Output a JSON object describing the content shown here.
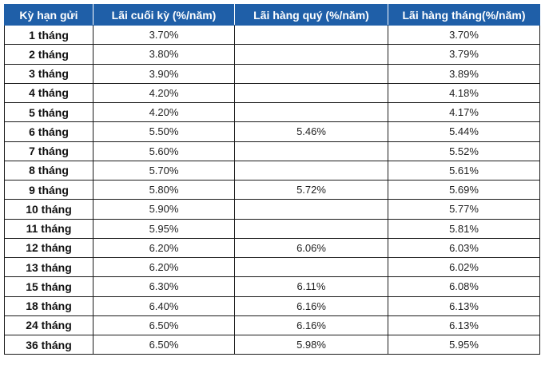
{
  "table": {
    "headers": [
      "Kỳ hạn gửi",
      "Lãi cuối kỳ (%/năm)",
      "Lãi hàng quý (%/năm)",
      "Lãi hàng tháng(%/năm)"
    ],
    "rows": [
      {
        "term": "1 tháng",
        "end": "3.70%",
        "quarterly": "",
        "monthly": "3.70%"
      },
      {
        "term": "2 tháng",
        "end": "3.80%",
        "quarterly": "",
        "monthly": "3.79%"
      },
      {
        "term": "3 tháng",
        "end": "3.90%",
        "quarterly": "",
        "monthly": "3.89%"
      },
      {
        "term": "4 tháng",
        "end": "4.20%",
        "quarterly": "",
        "monthly": "4.18%"
      },
      {
        "term": "5 tháng",
        "end": "4.20%",
        "quarterly": "",
        "monthly": "4.17%"
      },
      {
        "term": "6 tháng",
        "end": "5.50%",
        "quarterly": "5.46%",
        "monthly": "5.44%"
      },
      {
        "term": "7 tháng",
        "end": "5.60%",
        "quarterly": "",
        "monthly": "5.52%"
      },
      {
        "term": "8 tháng",
        "end": "5.70%",
        "quarterly": "",
        "monthly": "5.61%"
      },
      {
        "term": "9 tháng",
        "end": "5.80%",
        "quarterly": "5.72%",
        "monthly": "5.69%"
      },
      {
        "term": "10 tháng",
        "end": "5.90%",
        "quarterly": "",
        "monthly": "5.77%"
      },
      {
        "term": "11 tháng",
        "end": "5.95%",
        "quarterly": "",
        "monthly": "5.81%"
      },
      {
        "term": "12 tháng",
        "end": "6.20%",
        "quarterly": "6.06%",
        "monthly": "6.03%"
      },
      {
        "term": "13 tháng",
        "end": "6.20%",
        "quarterly": "",
        "monthly": "6.02%"
      },
      {
        "term": "15 tháng",
        "end": "6.30%",
        "quarterly": "6.11%",
        "monthly": "6.08%"
      },
      {
        "term": "18 tháng",
        "end": "6.40%",
        "quarterly": "6.16%",
        "monthly": "6.13%"
      },
      {
        "term": "24 tháng",
        "end": "6.50%",
        "quarterly": "6.16%",
        "monthly": "6.13%"
      },
      {
        "term": "36 tháng",
        "end": "6.50%",
        "quarterly": "5.98%",
        "monthly": "5.95%"
      }
    ]
  },
  "colors": {
    "header_bg": "#1f5fa8",
    "header_text": "#ffffff",
    "grid": "#1a1a1a"
  }
}
